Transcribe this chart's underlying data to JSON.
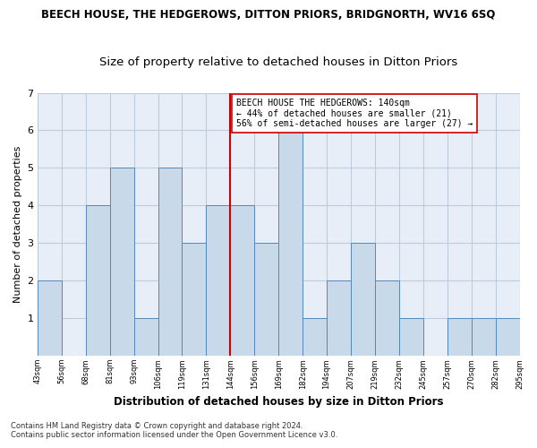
{
  "title": "BEECH HOUSE, THE HEDGEROWS, DITTON PRIORS, BRIDGNORTH, WV16 6SQ",
  "subtitle": "Size of property relative to detached houses in Ditton Priors",
  "xlabel": "Distribution of detached houses by size in Ditton Priors",
  "ylabel": "Number of detached properties",
  "footer_line1": "Contains HM Land Registry data © Crown copyright and database right 2024.",
  "footer_line2": "Contains public sector information licensed under the Open Government Licence v3.0.",
  "bin_labels": [
    "43sqm",
    "56sqm",
    "68sqm",
    "81sqm",
    "93sqm",
    "106sqm",
    "119sqm",
    "131sqm",
    "144sqm",
    "156sqm",
    "169sqm",
    "182sqm",
    "194sqm",
    "207sqm",
    "219sqm",
    "232sqm",
    "245sqm",
    "257sqm",
    "270sqm",
    "282sqm",
    "295sqm"
  ],
  "bar_heights": [
    2,
    0,
    4,
    5,
    1,
    5,
    3,
    4,
    4,
    3,
    6,
    1,
    2,
    3,
    2,
    1,
    0,
    1,
    1,
    1
  ],
  "bar_color": "#c8d9ea",
  "bar_edge_color": "#5588bb",
  "vline_color": "#cc0000",
  "annotation_text": "BEECH HOUSE THE HEDGEROWS: 140sqm\n← 44% of detached houses are smaller (21)\n56% of semi-detached houses are larger (27) →",
  "annotation_box_color": "#ffffff",
  "annotation_box_edge": "#cc0000",
  "ylim": [
    0,
    7
  ],
  "yticks": [
    0,
    1,
    2,
    3,
    4,
    5,
    6,
    7
  ],
  "background_color": "#e8eef8",
  "grid_color": "#bbccdd",
  "title_fontsize": 8.5,
  "subtitle_fontsize": 9.5
}
